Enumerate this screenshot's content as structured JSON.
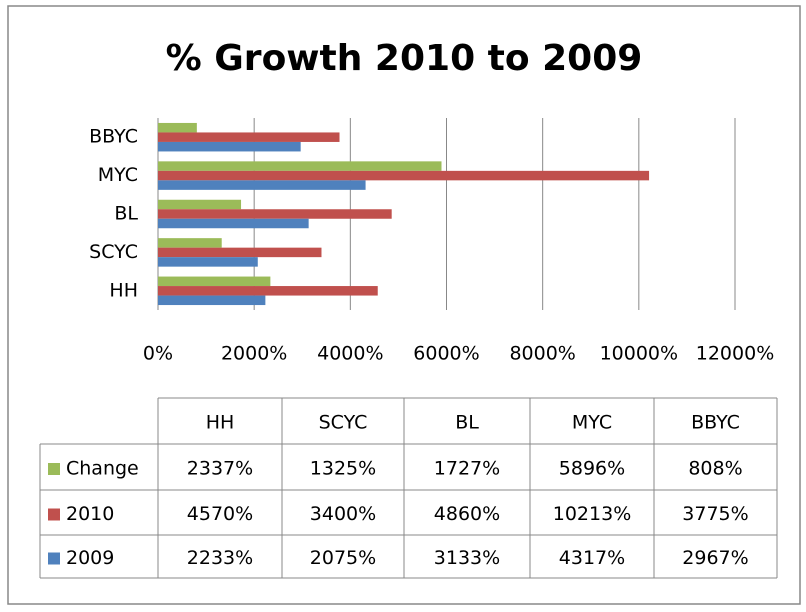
{
  "chart_data": {
    "type": "hbar",
    "title": "% Growth 2010 to 2009",
    "categories": [
      "HH",
      "SCYC",
      "BL",
      "MYC",
      "BBYC"
    ],
    "series": [
      {
        "name": "Change",
        "color": "#9bbb59",
        "values": [
          2337,
          1325,
          1727,
          5896,
          808
        ],
        "value_labels": [
          "2337%",
          "1325%",
          "1727%",
          "5896%",
          "808%"
        ]
      },
      {
        "name": "2010",
        "color": "#c0504d",
        "values": [
          4570,
          3400,
          4860,
          10213,
          3775
        ],
        "value_labels": [
          "4570%",
          "3400%",
          "4860%",
          "10213%",
          "3775%"
        ]
      },
      {
        "name": "2009",
        "color": "#4f81bd",
        "values": [
          2233,
          2075,
          3133,
          4317,
          2967
        ],
        "value_labels": [
          "2233%",
          "2075%",
          "3133%",
          "4317%",
          "2967%"
        ]
      }
    ],
    "xlim": [
      0,
      12000
    ],
    "xticks": [
      {
        "value": 0,
        "label": "0%"
      },
      {
        "value": 2000,
        "label": "2000%"
      },
      {
        "value": 4000,
        "label": "4000%"
      },
      {
        "value": 6000,
        "label": "6000%"
      },
      {
        "value": 8000,
        "label": "8000%"
      },
      {
        "value": 10000,
        "label": "10000%"
      },
      {
        "value": 12000,
        "label": "12000%"
      }
    ],
    "grid": true
  }
}
